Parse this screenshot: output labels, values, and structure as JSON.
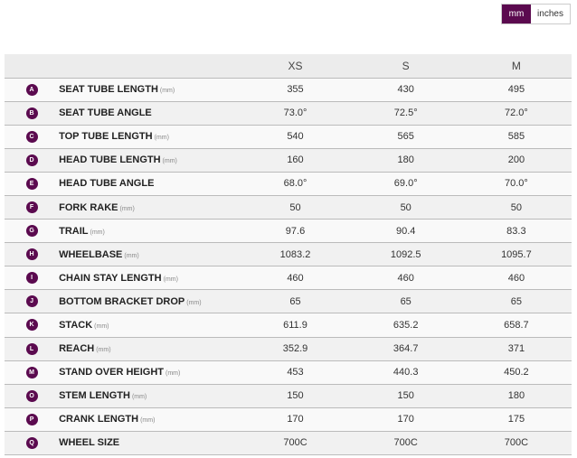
{
  "units": {
    "mm": "mm",
    "inches": "inches",
    "active": "mm"
  },
  "accent": "#5b0a4f",
  "sizes": [
    "XS",
    "S",
    "M"
  ],
  "rows": [
    {
      "letter": "A",
      "label": "SEAT TUBE LENGTH",
      "unit": "(mm)",
      "values": [
        "355",
        "430",
        "495"
      ]
    },
    {
      "letter": "B",
      "label": "SEAT TUBE ANGLE",
      "unit": "",
      "values": [
        "73.0°",
        "72.5°",
        "72.0°"
      ]
    },
    {
      "letter": "C",
      "label": "TOP TUBE LENGTH",
      "unit": "(mm)",
      "values": [
        "540",
        "565",
        "585"
      ]
    },
    {
      "letter": "D",
      "label": "HEAD TUBE LENGTH",
      "unit": "(mm)",
      "values": [
        "160",
        "180",
        "200"
      ]
    },
    {
      "letter": "E",
      "label": "HEAD TUBE ANGLE",
      "unit": "",
      "values": [
        "68.0°",
        "69.0°",
        "70.0°"
      ]
    },
    {
      "letter": "F",
      "label": "FORK RAKE",
      "unit": "(mm)",
      "values": [
        "50",
        "50",
        "50"
      ]
    },
    {
      "letter": "G",
      "label": "TRAIL",
      "unit": "(mm)",
      "values": [
        "97.6",
        "90.4",
        "83.3"
      ]
    },
    {
      "letter": "H",
      "label": "WHEELBASE",
      "unit": "(mm)",
      "values": [
        "1083.2",
        "1092.5",
        "1095.7"
      ]
    },
    {
      "letter": "I",
      "label": "CHAIN STAY LENGTH",
      "unit": "(mm)",
      "values": [
        "460",
        "460",
        "460"
      ]
    },
    {
      "letter": "J",
      "label": "BOTTOM BRACKET DROP",
      "unit": "(mm)",
      "values": [
        "65",
        "65",
        "65"
      ]
    },
    {
      "letter": "K",
      "label": "STACK",
      "unit": "(mm)",
      "values": [
        "611.9",
        "635.2",
        "658.7"
      ]
    },
    {
      "letter": "L",
      "label": "REACH",
      "unit": "(mm)",
      "values": [
        "352.9",
        "364.7",
        "371"
      ]
    },
    {
      "letter": "M",
      "label": "STAND OVER HEIGHT",
      "unit": "(mm)",
      "values": [
        "453",
        "440.3",
        "450.2"
      ]
    },
    {
      "letter": "O",
      "label": "STEM LENGTH",
      "unit": "(mm)",
      "values": [
        "150",
        "150",
        "180"
      ]
    },
    {
      "letter": "P",
      "label": "CRANK LENGTH",
      "unit": "(mm)",
      "values": [
        "170",
        "170",
        "175"
      ]
    },
    {
      "letter": "Q",
      "label": "WHEEL SIZE",
      "unit": "",
      "values": [
        "700C",
        "700C",
        "700C"
      ]
    }
  ]
}
